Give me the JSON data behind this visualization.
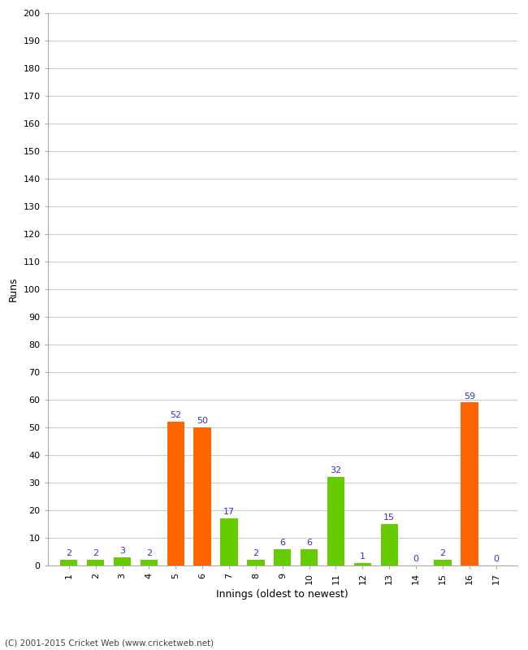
{
  "xlabel": "Innings (oldest to newest)",
  "ylabel": "Runs",
  "innings": [
    1,
    2,
    3,
    4,
    5,
    6,
    7,
    8,
    9,
    10,
    11,
    12,
    13,
    14,
    15,
    16,
    17
  ],
  "values": [
    2,
    2,
    3,
    2,
    52,
    50,
    17,
    2,
    6,
    6,
    32,
    1,
    15,
    0,
    2,
    59,
    0
  ],
  "colors": [
    "#66cc00",
    "#66cc00",
    "#66cc00",
    "#66cc00",
    "#ff6600",
    "#ff6600",
    "#66cc00",
    "#66cc00",
    "#66cc00",
    "#66cc00",
    "#66cc00",
    "#66cc00",
    "#66cc00",
    "#66cc00",
    "#66cc00",
    "#ff6600",
    "#66cc00"
  ],
  "ylim": [
    0,
    200
  ],
  "ytick_step": 10,
  "background_color": "#ffffff",
  "grid_color": "#cccccc",
  "label_color": "#3333cc",
  "footer": "(C) 2001-2015 Cricket Web (www.cricketweb.net)"
}
